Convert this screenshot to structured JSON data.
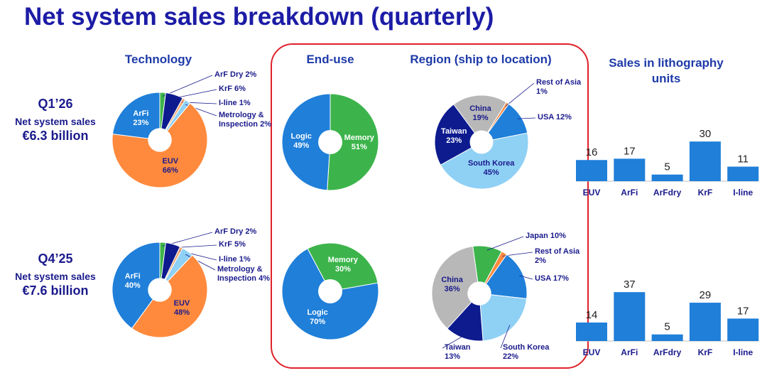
{
  "title": "Net system sales breakdown (quarterly)",
  "headers": [
    "Technology",
    "End-use",
    "Region (ship to location)",
    "Sales in lithography units"
  ],
  "quarters": [
    {
      "label": "Q1’26",
      "caption": "Net system sales",
      "amount": "€6.3 billion"
    },
    {
      "label": "Q4’25",
      "caption": "Net system sales",
      "amount": "€7.6 billion"
    }
  ],
  "chart_data": [
    {
      "type": "pie",
      "categories": [
        "ArF Dry",
        "KrF",
        "I-line",
        "Metrology & Inspection",
        "EUV",
        "ArFi"
      ],
      "values": [
        2,
        6,
        1,
        2,
        66,
        23
      ],
      "value_labels": [
        "2%",
        "6%",
        "1%",
        "2%",
        "66%",
        "23%"
      ],
      "colors": [
        "#3db54a",
        "#0d1b8f",
        "#f4a46a",
        "#8fd0f5",
        "#ff8a3d",
        "#1f7fd9"
      ]
    },
    {
      "type": "pie",
      "categories": [
        "Memory",
        "Logic"
      ],
      "values": [
        51,
        49
      ],
      "value_labels": [
        "51%",
        "49%"
      ],
      "colors": [
        "#3cb44b",
        "#1f7fd9"
      ]
    },
    {
      "type": "pie",
      "categories": [
        "Rest of Asia",
        "USA",
        "South Korea",
        "Taiwan",
        "China"
      ],
      "values": [
        1,
        12,
        45,
        23,
        19
      ],
      "value_labels": [
        "1%",
        "12%",
        "45%",
        "23%",
        "19%"
      ],
      "colors": [
        "#ff8a3d",
        "#1f7fd9",
        "#8fd0f5",
        "#0d1b8f",
        "#b8b8b8"
      ]
    },
    {
      "type": "bar",
      "categories": [
        "EUV",
        "ArFi",
        "ArFdry",
        "KrF",
        "I-line"
      ],
      "values": [
        16,
        17,
        5,
        30,
        11
      ],
      "color": "#1f7fd9"
    },
    {
      "type": "pie",
      "categories": [
        "ArF Dry",
        "KrF",
        "I-line",
        "Metrology & Inspection",
        "EUV",
        "ArFi"
      ],
      "values": [
        2,
        5,
        1,
        4,
        48,
        40
      ],
      "value_labels": [
        "2%",
        "5%",
        "1%",
        "4%",
        "48%",
        "40%"
      ],
      "colors": [
        "#3db54a",
        "#0d1b8f",
        "#f4a46a",
        "#8fd0f5",
        "#ff8a3d",
        "#1f7fd9"
      ]
    },
    {
      "type": "pie",
      "categories": [
        "Memory",
        "Logic"
      ],
      "values": [
        30,
        70
      ],
      "value_labels": [
        "30%",
        "70%"
      ],
      "colors": [
        "#3cb44b",
        "#1f7fd9"
      ]
    },
    {
      "type": "pie",
      "categories": [
        "Japan",
        "Rest of Asia",
        "USA",
        "South Korea",
        "Taiwan",
        "China"
      ],
      "values": [
        10,
        2,
        17,
        22,
        13,
        36
      ],
      "value_labels": [
        "10%",
        "2%",
        "17%",
        "22%",
        "13%",
        "36%"
      ],
      "colors": [
        "#3cb44b",
        "#ff8a3d",
        "#1f7fd9",
        "#8fd0f5",
        "#0d1b8f",
        "#b8b8b8"
      ]
    },
    {
      "type": "bar",
      "categories": [
        "EUV",
        "ArFi",
        "ArFdry",
        "KrF",
        "I-line"
      ],
      "values": [
        14,
        37,
        5,
        29,
        17
      ],
      "color": "#1f7fd9"
    }
  ]
}
